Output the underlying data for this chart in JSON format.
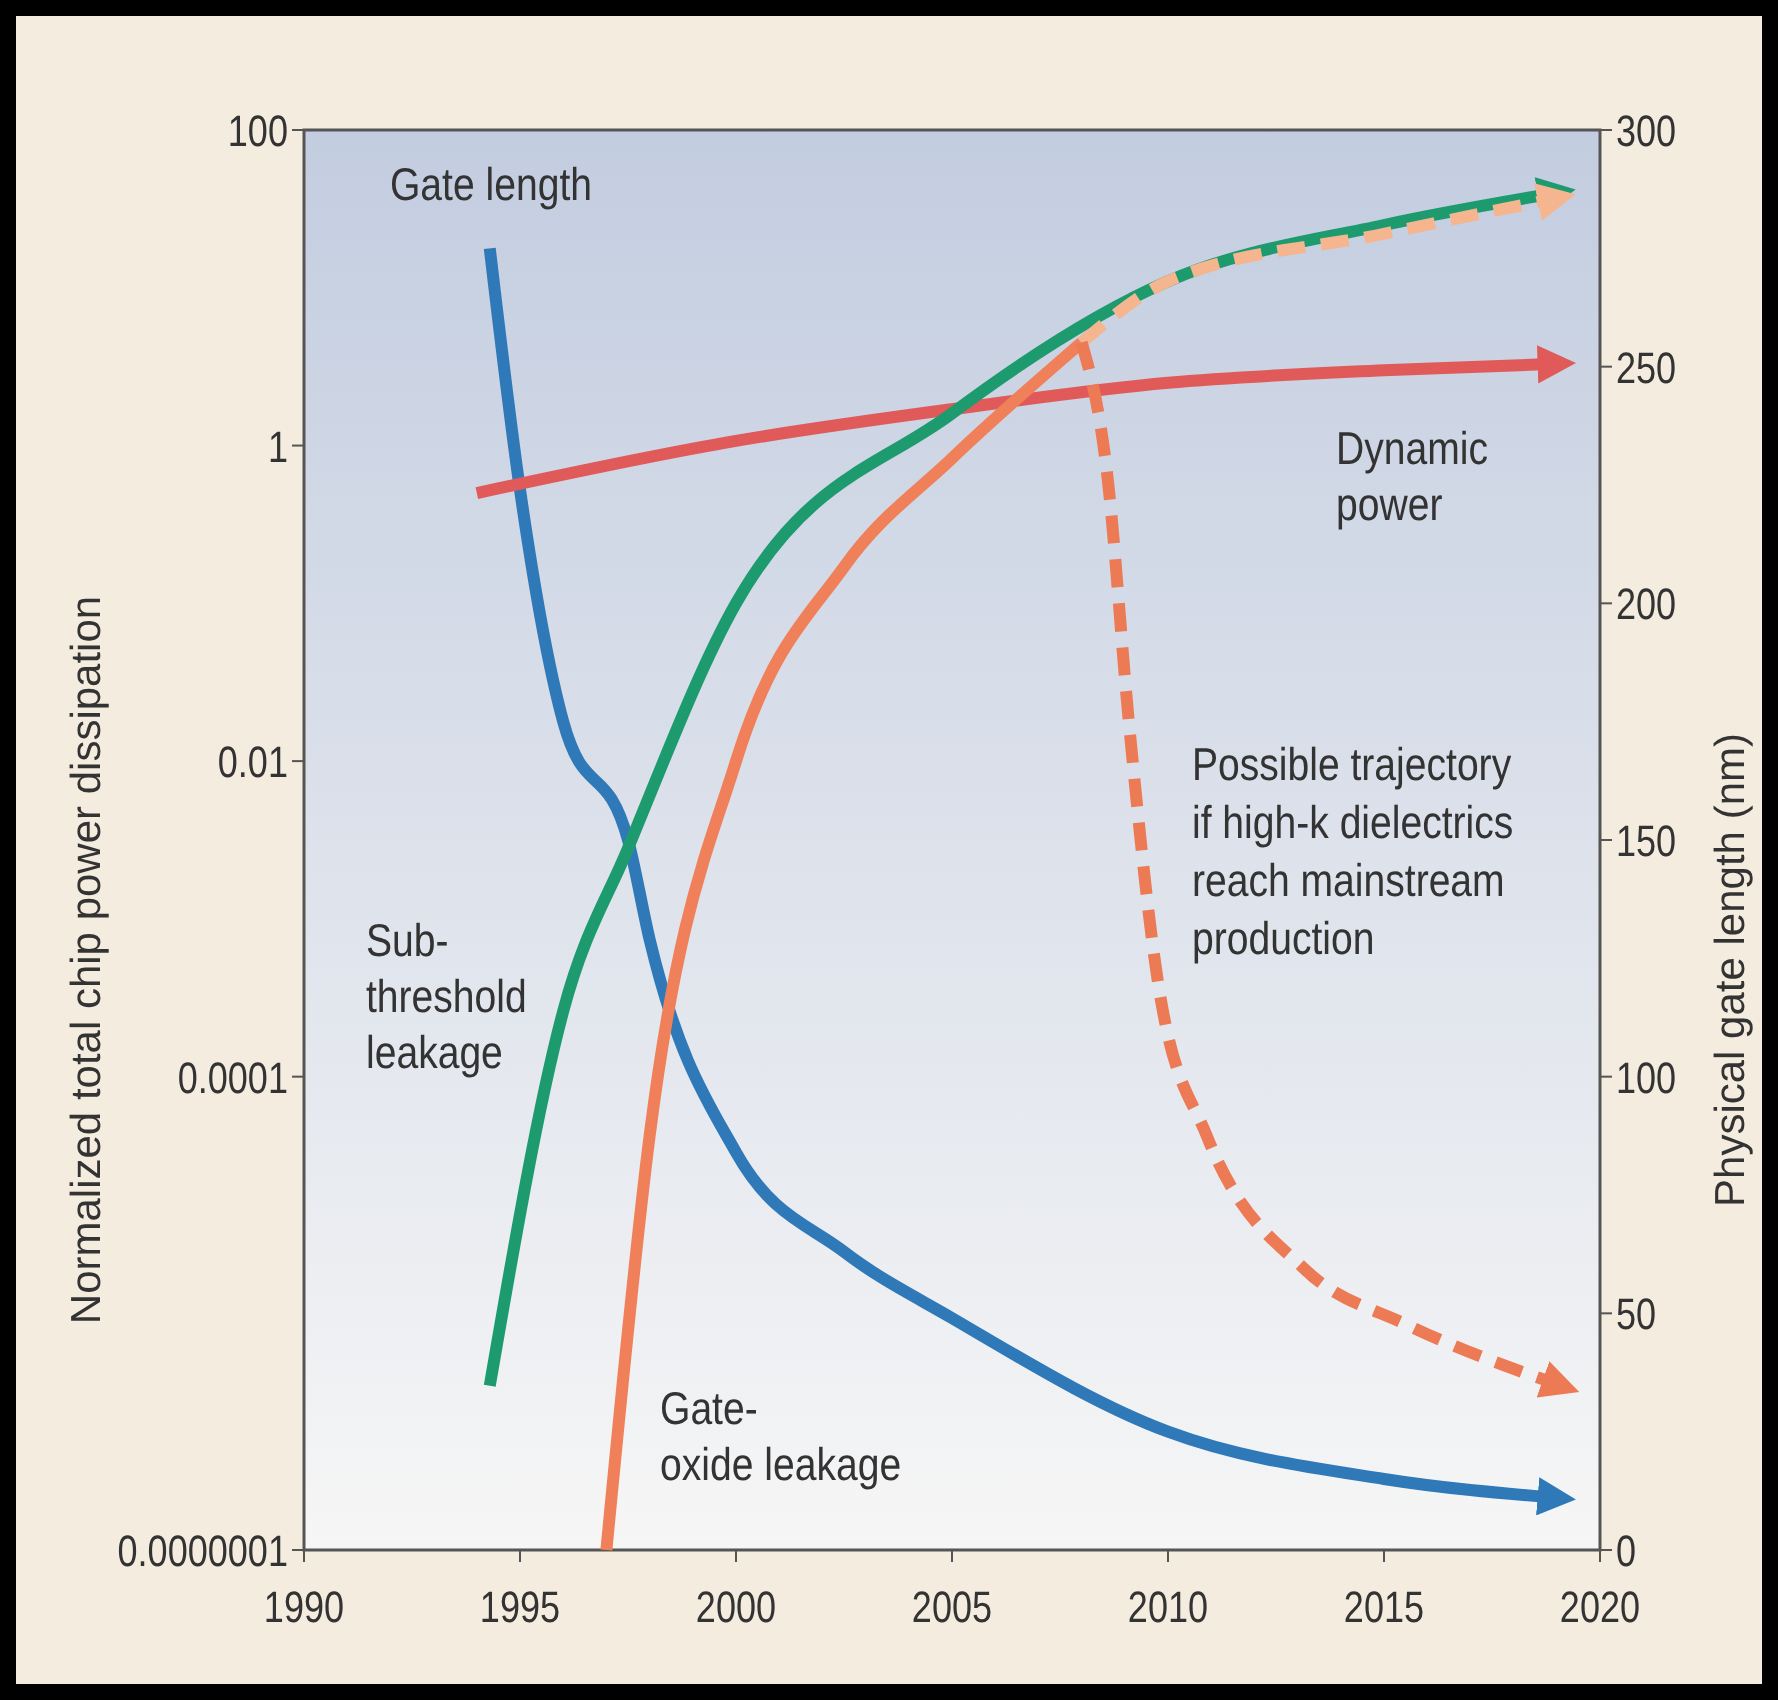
{
  "chart_data": {
    "type": "line",
    "xlim": [
      1990,
      2020
    ],
    "xticks": [
      1990,
      1995,
      2000,
      2005,
      2010,
      2015,
      2020
    ],
    "ylabel": "Normalized total chip power dissipation",
    "y2label": "Physical gate length (nm)",
    "log": "y",
    "ylim": [
      1e-07,
      100
    ],
    "yticks": [
      100,
      1,
      0.01,
      0.0001,
      {
        "value": 1e-07,
        "label": "0.0000001"
      }
    ],
    "y2lim": [
      0,
      300
    ],
    "y2ticks": [
      0,
      50,
      100,
      150,
      200,
      250,
      300
    ],
    "grid": false,
    "legend": false,
    "marker": "none",
    "series": [
      {
        "name": "Gate length",
        "color": "#2f79b8",
        "axis": "y2",
        "line_style": "solid",
        "x": [
          1994.3,
          1995,
          1996,
          1997.5,
          1998,
          2000,
          2002.5,
          2005,
          2010,
          2015,
          2019
        ],
        "values": [
          275,
          224,
          175,
          150,
          129,
          84,
          63,
          49,
          25,
          15,
          11
        ]
      },
      {
        "name": "Dynamic power",
        "color": "#e05a5a",
        "line_style": "solid",
        "x": [
          1994,
          2000,
          2005,
          2010,
          2015,
          2019
        ],
        "values": [
          0.5,
          1.07,
          1.7,
          2.5,
          3,
          3.3
        ]
      },
      {
        "name": "Sub-threshold leakage",
        "color": "#1e9b6e",
        "line_style": "solid",
        "x": [
          1994.3,
          1996,
          1997.5,
          2000,
          2005,
          2010,
          2015,
          2019
        ],
        "values": [
          1.1e-06,
          0.00026,
          0.0028,
          0.1,
          1.6,
          11,
          25,
          40
        ]
      },
      {
        "name": "Gate-oxide leakage",
        "color": "#f0805a",
        "line_style": "solid",
        "x": [
          1997,
          1998,
          2000,
          2002.5,
          2005,
          2008
        ],
        "values": [
          1e-07,
          4.2e-05,
          0.01,
          0.17,
          0.83,
          4.5
        ]
      },
      {
        "color": "#f5b58f",
        "line_style": "dashed",
        "x": [
          2008,
          2010,
          2015,
          2019
        ],
        "values": [
          4.5,
          11,
          22,
          37
        ]
      },
      {
        "color": "#ec7a55",
        "line_style": "dashed",
        "x": [
          2008,
          2008.6,
          2009.1,
          2009.8,
          2010.9,
          2013.2,
          2015.5,
          2019.1
        ],
        "values": [
          4.5,
          0.63,
          0.017,
          0.00035,
          4.2e-05,
          5.9e-06,
          2.7e-06,
          1.1e-06
        ]
      }
    ],
    "annotations": [
      "Possible trajectory if high-k dielectrics reach mainstream production"
    ]
  }
}
